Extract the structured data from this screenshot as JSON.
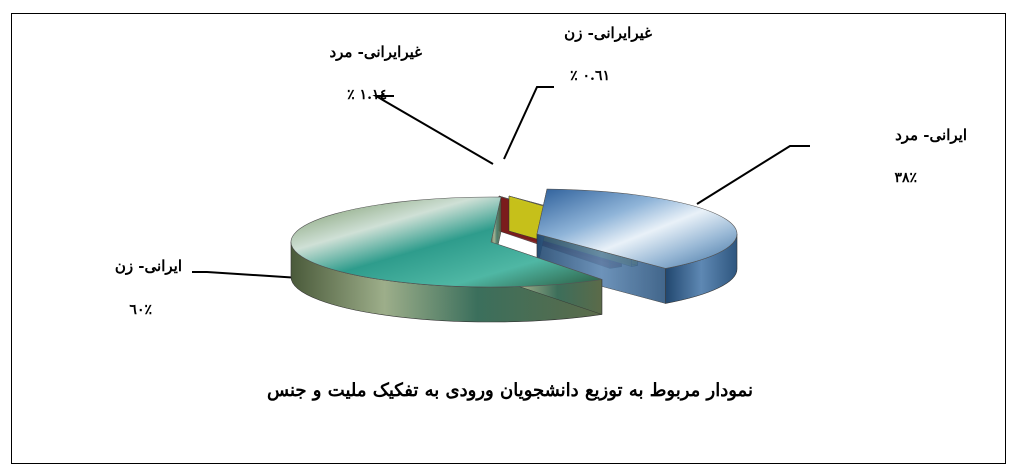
{
  "chart_data": {
    "type": "pie",
    "style": "3d-exploded",
    "title": "نمودار مربوط به توزیع دانشجویان ورودی به تفکیک ملیت و جنس",
    "slices": [
      {
        "label": "ایرانی- مرد",
        "percent_text": "۳۸٪",
        "value": 38,
        "color": "#4f83b8"
      },
      {
        "label": "غیرایرانی- زن",
        "percent_text": "٪ ۰.٦۱",
        "value": 0.61,
        "color": "#c7c21a"
      },
      {
        "label": "غیرایرانی- مرد",
        "percent_text": "٪ ۱.۱٤",
        "value": 1.14,
        "color": "#7a1a1a"
      },
      {
        "label": "ایرانی- زن",
        "percent_text": "٦۰٪",
        "value": 60,
        "color": "#3f8a6a"
      }
    ],
    "legend": "none"
  }
}
